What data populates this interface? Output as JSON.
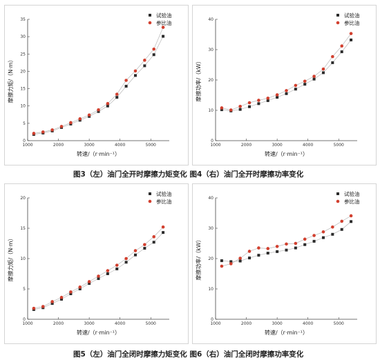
{
  "captions": {
    "row1": "图3（左）油门全开时摩擦力矩变化  图4（右）油门全开时摩擦功率变化",
    "row2": "图5（左）油门全闭时摩擦力矩变化  图6（右）油门全闭时摩擦功率变化"
  },
  "colors": {
    "test": "#2b2b2b",
    "reference": "#d2402f",
    "fit": "#b8b8b8",
    "axis": "#444444"
  },
  "chart_data": [
    {
      "type": "scatter",
      "xlabel": "转速/（r·min⁻¹）",
      "ylabel": "摩擦力矩/（N·m）",
      "xlim": [
        1000,
        5600
      ],
      "ylim": [
        0,
        35
      ],
      "xticks": [
        1000,
        2000,
        3000,
        4000,
        5000
      ],
      "yticks": [
        0,
        5,
        10,
        15,
        20,
        25,
        30,
        35
      ],
      "legend_position": "top-right",
      "x": [
        1200,
        1500,
        1800,
        2100,
        2400,
        2700,
        3000,
        3300,
        3600,
        3900,
        4200,
        4500,
        4800,
        5100,
        5400
      ],
      "series": [
        {
          "name": "试验油",
          "values": [
            1.8,
            2.2,
            2.8,
            3.8,
            4.8,
            5.9,
            7.0,
            8.4,
            10.0,
            12.5,
            15.7,
            18.8,
            21.6,
            24.8,
            30.1
          ]
        },
        {
          "name": "参比油",
          "values": [
            2.1,
            2.5,
            3.1,
            4.1,
            5.2,
            6.3,
            7.4,
            8.9,
            10.7,
            13.4,
            17.4,
            20.1,
            23.2,
            26.4,
            32.7
          ]
        }
      ]
    },
    {
      "type": "scatter",
      "xlabel": "转速/（r·min⁻¹）",
      "ylabel": "摩擦功率/（kW）",
      "xlim": [
        1000,
        5600
      ],
      "ylim": [
        0,
        40
      ],
      "xticks": [
        1000,
        2000,
        3000,
        4000,
        5000
      ],
      "yticks": [
        0,
        10,
        20,
        30,
        40
      ],
      "legend_position": "top-right",
      "x": [
        1200,
        1500,
        1800,
        2100,
        2400,
        2700,
        3000,
        3300,
        3600,
        3900,
        4200,
        4500,
        4800,
        5100,
        5400
      ],
      "series": [
        {
          "name": "试验油",
          "values": [
            10.2,
            9.8,
            10.3,
            11.2,
            12.2,
            13.2,
            14.3,
            15.5,
            17.0,
            18.6,
            20.3,
            22.4,
            25.7,
            29.3,
            33.2
          ]
        },
        {
          "name": "参比油",
          "values": [
            10.8,
            10.1,
            11.3,
            12.5,
            13.3,
            14.0,
            15.1,
            16.5,
            18.2,
            19.6,
            21.2,
            23.6,
            27.7,
            31.2,
            35.3
          ]
        }
      ]
    },
    {
      "type": "scatter",
      "xlabel": "转速/（r·min⁻¹）",
      "ylabel": "摩擦力矩/（N·m）",
      "xlim": [
        1000,
        5600
      ],
      "ylim": [
        0,
        20
      ],
      "xticks": [
        1000,
        2000,
        3000,
        4000,
        5000
      ],
      "yticks": [
        0,
        5,
        10,
        15,
        20
      ],
      "legend_position": "top-right",
      "x": [
        1200,
        1500,
        1800,
        2100,
        2400,
        2700,
        3000,
        3300,
        3600,
        3900,
        4200,
        4500,
        4800,
        5100,
        5400
      ],
      "series": [
        {
          "name": "试验油",
          "values": [
            1.6,
            1.9,
            2.6,
            3.3,
            4.2,
            5.0,
            5.9,
            6.7,
            7.5,
            8.3,
            9.4,
            10.6,
            11.7,
            12.7,
            14.3
          ]
        },
        {
          "name": "参比油",
          "values": [
            1.8,
            2.1,
            2.9,
            3.6,
            4.5,
            5.3,
            6.2,
            7.1,
            8.0,
            8.9,
            10.0,
            11.3,
            12.3,
            13.6,
            15.2
          ]
        }
      ]
    },
    {
      "type": "scatter",
      "xlabel": "转速/（r·min⁻¹）",
      "ylabel": "摩擦功率/（kW）",
      "xlim": [
        1000,
        5600
      ],
      "ylim": [
        0,
        40
      ],
      "xticks": [
        1000,
        2000,
        3000,
        4000,
        5000
      ],
      "yticks": [
        0,
        10,
        20,
        30,
        40
      ],
      "legend_position": "top-right",
      "x": [
        1200,
        1500,
        1800,
        2100,
        2400,
        2700,
        3000,
        3300,
        3600,
        3900,
        4200,
        4500,
        4800,
        5100,
        5400
      ],
      "series": [
        {
          "name": "试验油",
          "values": [
            19.3,
            19.0,
            19.2,
            20.2,
            21.1,
            21.8,
            22.3,
            22.8,
            23.5,
            24.6,
            25.7,
            26.9,
            28.0,
            29.6,
            32.2
          ]
        },
        {
          "name": "参比油",
          "values": [
            17.5,
            18.3,
            20.1,
            22.4,
            23.5,
            23.3,
            24.0,
            24.8,
            25.0,
            26.4,
            27.6,
            28.8,
            30.4,
            32.3,
            34.1
          ]
        }
      ]
    }
  ]
}
